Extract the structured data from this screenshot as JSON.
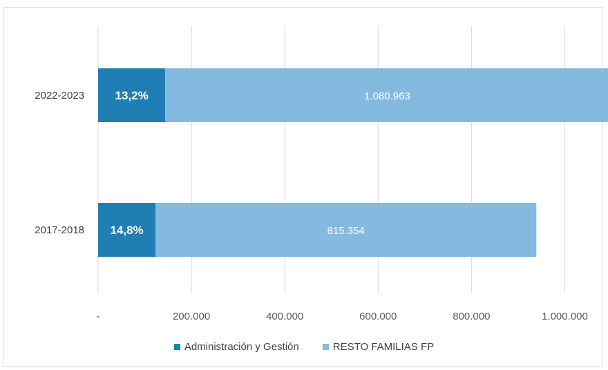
{
  "chart_data": {
    "type": "bar",
    "orientation": "horizontal",
    "stacked": true,
    "categories": [
      "2022-2023",
      "2017-2018"
    ],
    "series": [
      {
        "name": "Administración y Gestión",
        "color": "#1f7fb5",
        "values": [
          144000,
          123000
        ],
        "labels": [
          "13,2%",
          "14,8%"
        ]
      },
      {
        "name": "RESTO FAMILIAS FP",
        "color": "#84b9e0",
        "values": [
          951000,
          816000
        ],
        "labels": [
          "1.080.963",
          "815.354"
        ]
      }
    ],
    "xlim": [
      0,
      1100000
    ],
    "xticks": [
      {
        "value": 0,
        "label": "-"
      },
      {
        "value": 200000,
        "label": "200.000"
      },
      {
        "value": 400000,
        "label": "400.000"
      },
      {
        "value": 600000,
        "label": "600.000"
      },
      {
        "value": 800000,
        "label": "800.000"
      },
      {
        "value": 1000000,
        "label": "1.000.000"
      }
    ],
    "grid": true,
    "legend_position": "bottom"
  }
}
